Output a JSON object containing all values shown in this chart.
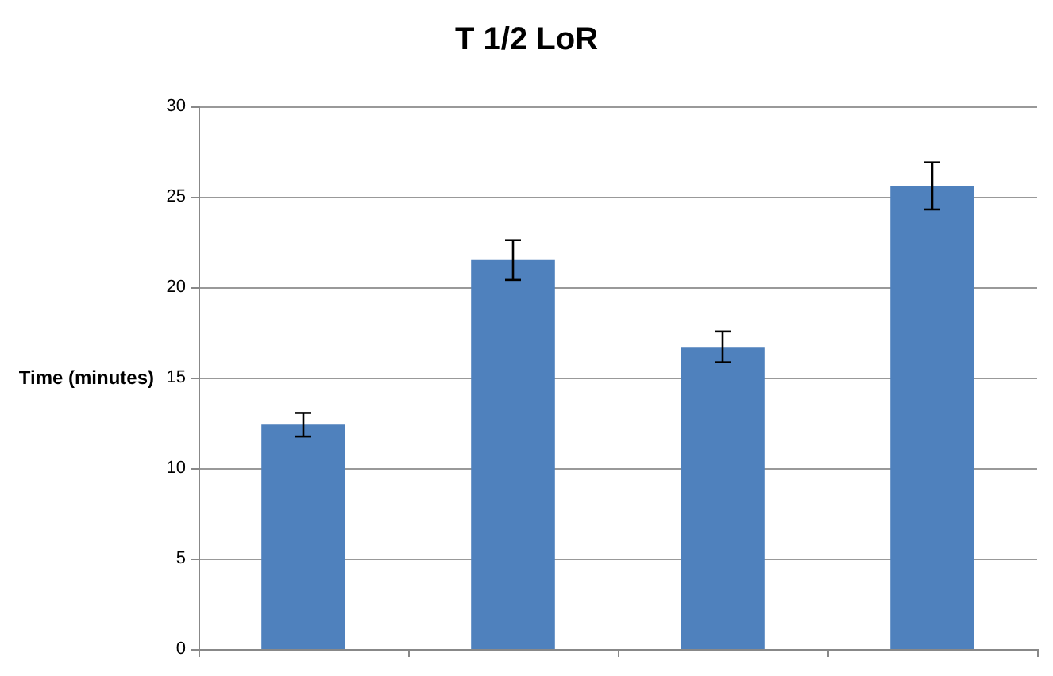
{
  "chart_data": {
    "type": "bar",
    "title": "T 1/2 LoR",
    "ylabel": "Time (minutes)",
    "categories": [
      null,
      null,
      null,
      null
    ],
    "values": [
      12.4,
      21.5,
      16.7,
      25.6
    ],
    "errors": [
      0.65,
      1.1,
      0.85,
      1.3
    ],
    "color": "#4f81bd",
    "ylim": [
      0,
      30
    ],
    "yticks": [
      0,
      5,
      10,
      15,
      20,
      25,
      30
    ],
    "grid": "y"
  }
}
